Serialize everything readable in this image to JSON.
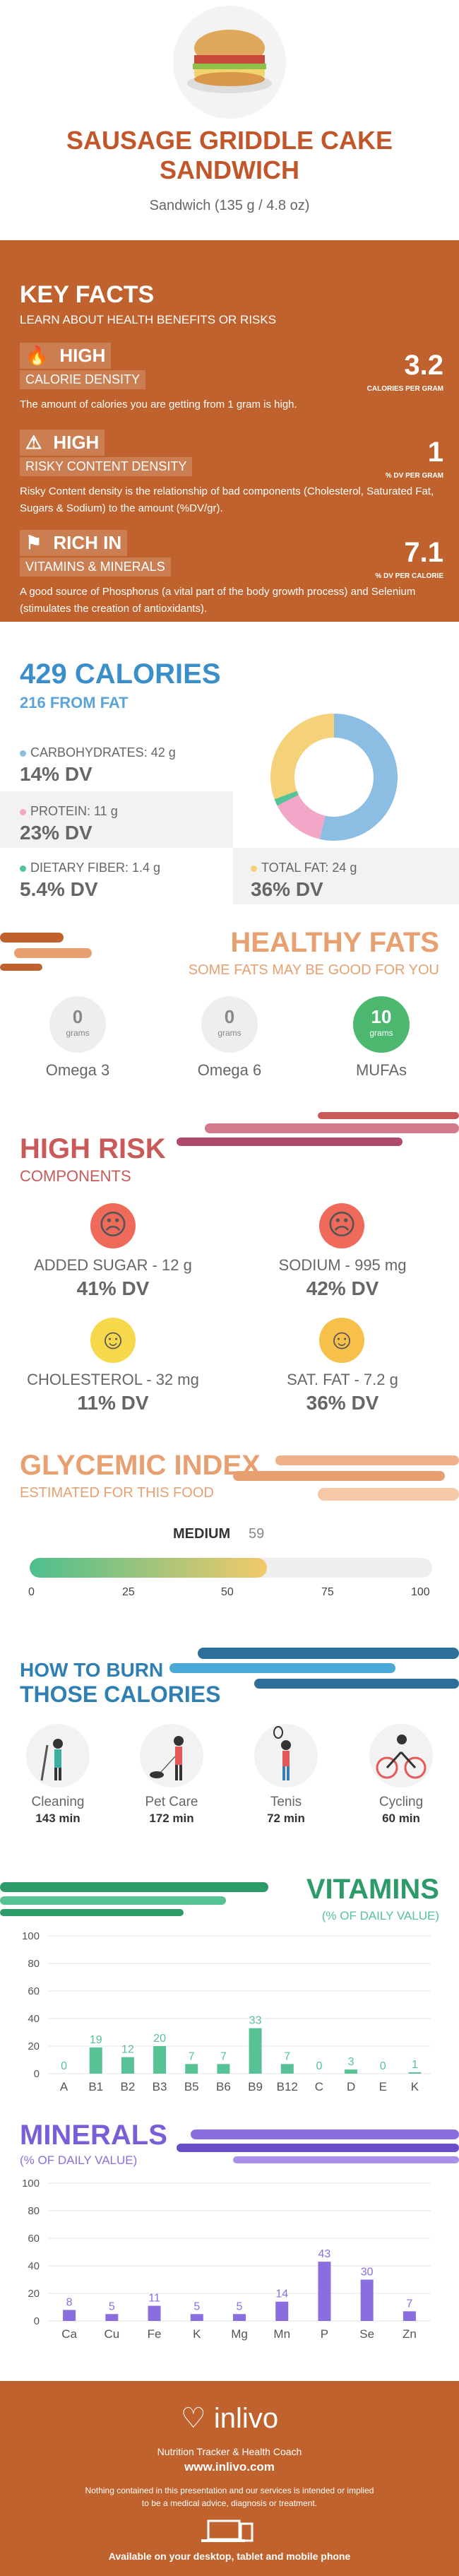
{
  "header": {
    "title": "SAUSAGE GRIDDLE CAKE SANDWICH",
    "serving": "Sandwich (135 g / 4.8 oz)"
  },
  "key_facts": {
    "title": "KEY FACTS",
    "subtitle": "LEARN ABOUT HEALTH BENEFITS OR RISKS",
    "facts": [
      {
        "level": "HIGH",
        "name": "CALORIE DENSITY",
        "value": "3.2",
        "unit": "CALORIES PER GRAM",
        "desc": "The amount of calories you are getting from 1 gram is high.",
        "icon": "flame-icon"
      },
      {
        "level": "HIGH",
        "name": "RISKY CONTENT DENSITY",
        "value": "1",
        "unit": "% DV PER GRAM",
        "desc": "Risky Content density is the relationship of bad components (Cholesterol, Saturated Fat, Sugars & Sodium) to the amount (%DV/gr).",
        "icon": "warning-icon"
      },
      {
        "level": "RICH  IN",
        "name": "VITAMINS & MINERALS",
        "value": "7.1",
        "unit": "% DV PER CALORIE",
        "desc": "A good source of Phosphorus (a vital part of the body growth process) and Selenium (stimulates the creation of antioxidants).",
        "icon": "tag-icon"
      }
    ]
  },
  "calories": {
    "title": "429 CALORIES",
    "from_fat": "216 FROM FAT",
    "nutrients": [
      {
        "label": "CARBOHYDRATES: 42 g",
        "dv": "14% DV",
        "color": "#8cbde3",
        "pct": 14
      },
      {
        "label": "PROTEIN: 11 g",
        "dv": "23% DV",
        "color": "#f2a6c8",
        "pct": 23
      },
      {
        "label": "DIETARY FIBER: 1.4 g",
        "dv": "5.4% DV",
        "color": "#56c295",
        "pct": 5.4
      },
      {
        "label": "TOTAL FAT: 24 g",
        "dv": "36% DV",
        "color": "#f5d27a",
        "pct": 36
      }
    ],
    "donut": [
      {
        "name": "carbs",
        "value": 42,
        "color": "#8cbde3"
      },
      {
        "name": "protein",
        "value": 11,
        "color": "#f2a6c8"
      },
      {
        "name": "fiber",
        "value": 1.4,
        "color": "#56c295"
      },
      {
        "name": "fat",
        "value": 24,
        "color": "#f5d27a"
      }
    ]
  },
  "healthy_fats": {
    "title": "HEALTHY FATS",
    "subtitle": "SOME FATS MAY BE GOOD FOR YOU",
    "unit": "grams",
    "items": [
      {
        "name": "Omega 3",
        "value": "0"
      },
      {
        "name": "Omega 6",
        "value": "0"
      },
      {
        "name": "MUFAs",
        "value": "10"
      }
    ]
  },
  "high_risk": {
    "title": "HIGH RISK",
    "subtitle": "COMPONENTS",
    "items": [
      {
        "label": "ADDED SUGAR - 12 g",
        "dv": "41% DV",
        "mood": "sad"
      },
      {
        "label": "SODIUM - 995 mg",
        "dv": "42% DV",
        "mood": "sad"
      },
      {
        "label": "CHOLESTEROL - 32 mg",
        "dv": "11% DV",
        "mood": "happy"
      },
      {
        "label": "SAT. FAT - 7.2 g",
        "dv": "36% DV",
        "mood": "happy"
      }
    ]
  },
  "glycemic": {
    "title": "GLYCEMIC INDEX",
    "subtitle": "ESTIMATED FOR THIS FOOD",
    "level": "MEDIUM",
    "value": 59,
    "value_label": "59",
    "ticks": [
      "0",
      "25",
      "50",
      "75",
      "100"
    ]
  },
  "burn": {
    "title1": "HOW TO BURN",
    "title2": "THOSE CALORIES",
    "activities": [
      {
        "name": "Cleaning",
        "minutes": "143 min",
        "icon": "cleaning-icon"
      },
      {
        "name": "Pet Care",
        "minutes": "172 min",
        "icon": "dog-walking-icon"
      },
      {
        "name": "Tenis",
        "minutes": "72 min",
        "icon": "tennis-icon"
      },
      {
        "name": "Cycling",
        "minutes": "60 min",
        "icon": "cycling-icon"
      }
    ]
  },
  "chart_data": [
    {
      "type": "bar",
      "title": "VITAMINS",
      "subtitle": "(% OF DAILY VALUE)",
      "categories": [
        "A",
        "B1",
        "B2",
        "B3",
        "B5",
        "B6",
        "B9",
        "B12",
        "C",
        "D",
        "E",
        "K"
      ],
      "values": [
        0,
        19,
        12,
        20,
        7,
        7,
        33,
        7,
        0,
        3,
        0,
        1
      ],
      "yticks": [
        "0",
        "20",
        "40",
        "60",
        "80",
        "100"
      ],
      "ylim": [
        0,
        100
      ],
      "color": "#56c295",
      "grid": true
    },
    {
      "type": "bar",
      "title": "MINERALS",
      "subtitle": "(% OF DAILY VALUE)",
      "categories": [
        "Ca",
        "Cu",
        "Fe",
        "K",
        "Mg",
        "Mn",
        "P",
        "Se",
        "Zn"
      ],
      "values": [
        8,
        5,
        11,
        5,
        5,
        14,
        43,
        30,
        7
      ],
      "yticks": [
        "0",
        "20",
        "40",
        "60",
        "80",
        "100"
      ],
      "ylim": [
        0,
        100
      ],
      "color": "#8a6ee0",
      "grid": true
    }
  ],
  "footer": {
    "brand": "inlivo",
    "tagline": "Nutrition Tracker & Health Coach",
    "url": "www.inlivo.com",
    "disclaimer1": "Nothing contained in this presentation and our services is intended or implied",
    "disclaimer2": "to be a medical advice, diagnosis or treatment.",
    "available": "Available on your desktop, tablet and mobile phone"
  },
  "colors": {
    "orange": "#c0622d",
    "blue": "#3b8fc8",
    "green": "#56c295",
    "purple": "#8a6ee0",
    "red": "#c95a5a"
  }
}
